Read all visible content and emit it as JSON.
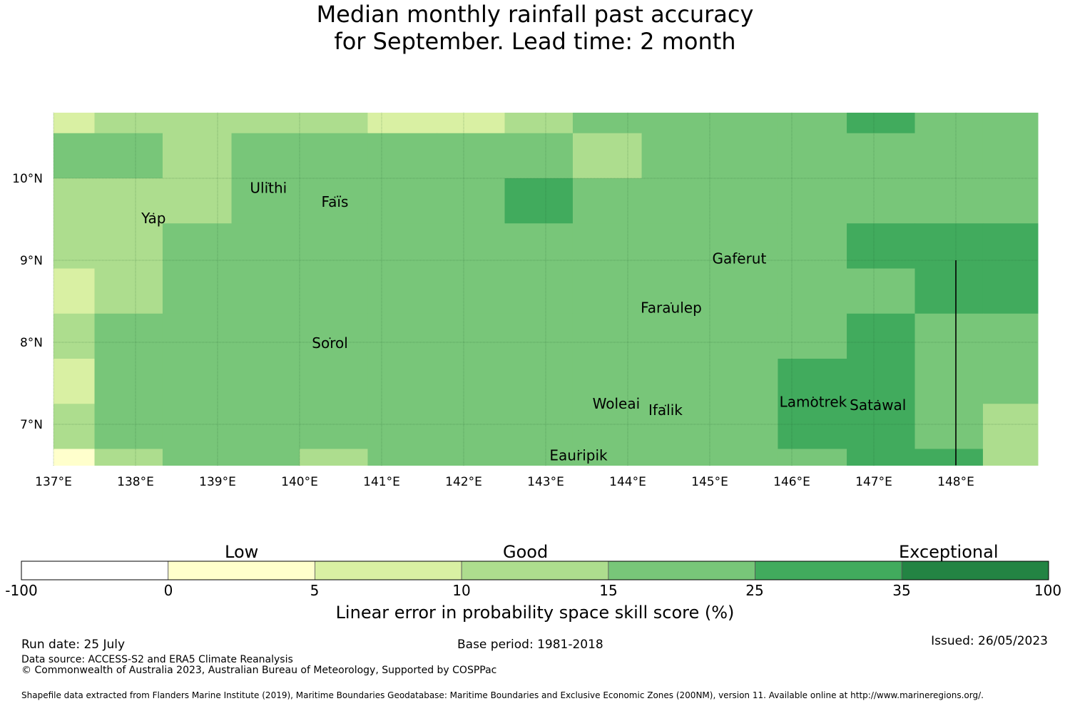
{
  "title": {
    "line1": "Median monthly rainfall past accuracy",
    "line2": "for September. Lead time: 2 month"
  },
  "map": {
    "lon_range": [
      137.0,
      149.0
    ],
    "lat_range": [
      6.5,
      10.8
    ],
    "x_ticks": [
      {
        "value": 137,
        "label": "137°E"
      },
      {
        "value": 138,
        "label": "138°E"
      },
      {
        "value": 139,
        "label": "139°E"
      },
      {
        "value": 140,
        "label": "140°E"
      },
      {
        "value": 141,
        "label": "141°E"
      },
      {
        "value": 142,
        "label": "142°E"
      },
      {
        "value": 143,
        "label": "143°E"
      },
      {
        "value": 144,
        "label": "144°E"
      },
      {
        "value": 145,
        "label": "145°E"
      },
      {
        "value": 146,
        "label": "146°E"
      },
      {
        "value": 147,
        "label": "147°E"
      },
      {
        "value": 148,
        "label": "148°E"
      }
    ],
    "y_ticks": [
      {
        "value": 10,
        "label": "10°N"
      },
      {
        "value": 9,
        "label": "9°N"
      },
      {
        "value": 8,
        "label": "8°N"
      },
      {
        "value": 7,
        "label": "7°N"
      }
    ],
    "grid_lon_edges": [
      137.0,
      137.5,
      138.33,
      139.17,
      140.0,
      140.83,
      141.67,
      142.5,
      143.33,
      144.17,
      145.0,
      145.83,
      146.67,
      147.5,
      148.33,
      149.0
    ],
    "grid_lat_edges": [
      10.8,
      10.55,
      10.0,
      9.45,
      8.9,
      8.35,
      7.8,
      7.25,
      6.7,
      6.5
    ],
    "cells": [
      [
        2,
        3,
        3,
        3,
        3,
        2,
        2,
        3,
        4,
        4,
        4,
        4,
        5,
        4,
        4
      ],
      [
        4,
        4,
        3,
        4,
        4,
        4,
        4,
        4,
        3,
        4,
        4,
        4,
        4,
        4,
        4
      ],
      [
        3,
        3,
        3,
        4,
        4,
        4,
        4,
        5,
        4,
        4,
        4,
        4,
        4,
        4,
        4
      ],
      [
        3,
        3,
        4,
        4,
        4,
        4,
        4,
        4,
        4,
        4,
        4,
        4,
        5,
        5,
        5
      ],
      [
        2,
        3,
        4,
        4,
        4,
        4,
        4,
        4,
        4,
        4,
        4,
        4,
        4,
        5,
        5
      ],
      [
        3,
        4,
        4,
        4,
        4,
        4,
        4,
        4,
        4,
        4,
        4,
        4,
        5,
        4,
        4
      ],
      [
        2,
        4,
        4,
        4,
        4,
        4,
        4,
        4,
        4,
        4,
        4,
        5,
        5,
        4,
        4
      ],
      [
        3,
        4,
        4,
        4,
        4,
        4,
        4,
        4,
        4,
        4,
        4,
        5,
        5,
        4,
        3
      ],
      [
        1,
        3,
        4,
        4,
        3,
        4,
        4,
        4,
        4,
        4,
        4,
        4,
        5,
        5,
        3
      ]
    ],
    "islands": [
      {
        "name": "Ulithi",
        "lon": 139.62,
        "lat": 9.87
      },
      {
        "name": "Faïs",
        "lon": 140.43,
        "lat": 9.7
      },
      {
        "name": "Yap",
        "lon": 138.22,
        "lat": 9.5
      },
      {
        "name": "Gaferut",
        "lon": 145.36,
        "lat": 9.01
      },
      {
        "name": "Faraulep",
        "lon": 144.53,
        "lat": 8.41
      },
      {
        "name": "Sorol",
        "lon": 140.37,
        "lat": 7.98
      },
      {
        "name": "Woleai",
        "lon": 143.86,
        "lat": 7.24
      },
      {
        "name": "Ifalik",
        "lon": 144.46,
        "lat": 7.16
      },
      {
        "name": "Lamotrek",
        "lon": 146.26,
        "lat": 7.26
      },
      {
        "name": "Satawal",
        "lon": 147.05,
        "lat": 7.22
      },
      {
        "name": "Eauripik",
        "lon": 143.4,
        "lat": 6.61
      }
    ],
    "boundary_line": {
      "lon": 148.0,
      "lat_from": 6.5,
      "lat_to": 9.0
    }
  },
  "colorbar": {
    "colors": [
      "#ffffff",
      "#ffffcc",
      "#d9f0a3",
      "#addd8e",
      "#78c679",
      "#41ab5d",
      "#238443"
    ],
    "tick_labels": [
      "-100",
      "0",
      "5",
      "10",
      "15",
      "25",
      "35",
      "100"
    ],
    "classes": {
      "low": "Low",
      "good": "Good",
      "exceptional": "Exceptional"
    },
    "label": "Linear error in probability space skill score (%)"
  },
  "footer": {
    "run_date": "Run date: 25 July",
    "base_period": "Base period: 1981-2018",
    "issued": "Issued: 26/05/2023",
    "data_source": "Data source: ACCESS-S2 and ERA5 Climate Reanalysis",
    "copyright": "© Commonwealth of Australia 2023, Australian Bureau of Meteorology, Supported by COSPPac",
    "shapefile": "Shapefile data extracted from Flanders Marine Institute (2019), Maritime Boundaries Geodatabase: Maritime Boundaries and Exclusive Economic Zones (200NM), version 11. Available online at http://www.marineregions.org/."
  }
}
